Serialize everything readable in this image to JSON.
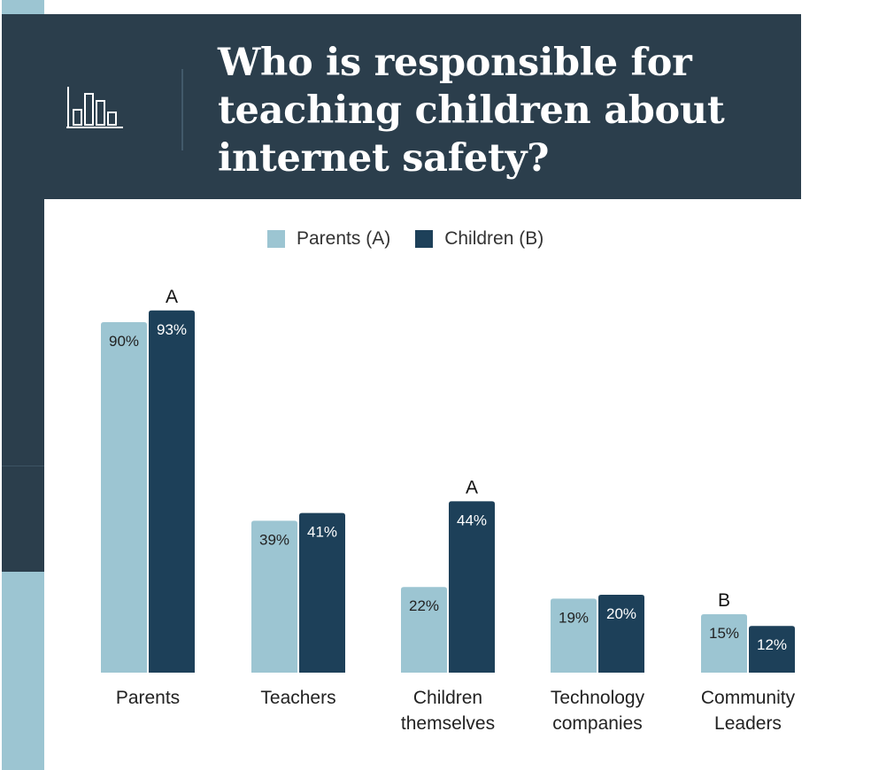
{
  "title": "Who is responsible for teaching children about internet safety?",
  "colors": {
    "header_bg": "#2b3e4c",
    "series_a": "#9cc5d2",
    "series_b": "#1d4059",
    "sidebar_light": "#9cc5d2"
  },
  "header_icon": "bar-chart-icon",
  "chart_data": {
    "type": "bar",
    "title": "Who is responsible for teaching children about internet safety?",
    "categories": [
      [
        "Parents"
      ],
      [
        "Teachers"
      ],
      [
        "Children",
        "themselves"
      ],
      [
        "Technology",
        "companies"
      ],
      [
        "Community",
        "Leaders"
      ]
    ],
    "series": [
      {
        "name": "Parents (A)",
        "values": [
          90,
          39,
          22,
          19,
          15
        ],
        "value_labels": [
          "90%",
          "39%",
          "22%",
          "19%",
          "15%"
        ],
        "annotations": [
          "",
          "",
          "",
          "",
          "B"
        ]
      },
      {
        "name": "Children (B)",
        "values": [
          93,
          41,
          44,
          20,
          12
        ],
        "value_labels": [
          "93%",
          "41%",
          "44%",
          "20%",
          "12%"
        ],
        "annotations": [
          "A",
          "",
          "A",
          "",
          ""
        ]
      }
    ],
    "ylim": [
      0,
      100
    ],
    "legend": "top",
    "grid": false
  }
}
